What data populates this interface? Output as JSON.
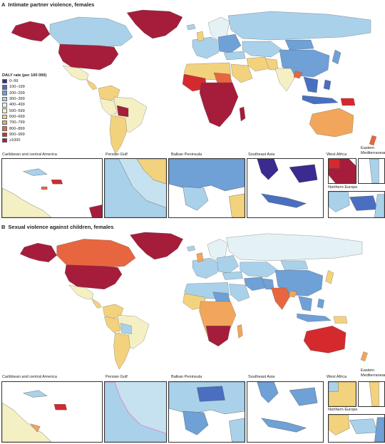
{
  "panel_a": {
    "letter": "A",
    "title": "Intimate partner violence, females",
    "insets": [
      "Caribbean and central America",
      "Persian Gulf",
      "Balkan Peninsula",
      "Southeast Asia",
      "West Africa",
      "Eastern Mediterranean",
      "Northern Europe"
    ]
  },
  "panel_b": {
    "letter": "B",
    "title": "Sexual violence against children, females",
    "insets": [
      "Caribbean and central America",
      "Persian Gulf",
      "Balkan Peninsula",
      "Southeast Asia",
      "West Africa",
      "Eastern Mediterranean",
      "Northern Europe"
    ]
  },
  "legend": {
    "title": "DALY rate (per 100 000)",
    "items": [
      {
        "label": "0–99",
        "color": "#3b2a8f"
      },
      {
        "label": "100–199",
        "color": "#4a6fc0"
      },
      {
        "label": "200–299",
        "color": "#6fa0d6"
      },
      {
        "label": "300–399",
        "color": "#a9d1ea"
      },
      {
        "label": "400–499",
        "color": "#e4f2f6"
      },
      {
        "label": "500–599",
        "color": "#f4f0c4"
      },
      {
        "label": "600–699",
        "color": "#f3d27e"
      },
      {
        "label": "700–799",
        "color": "#f1a65b"
      },
      {
        "label": "800–899",
        "color": "#e8663f"
      },
      {
        "label": "900–999",
        "color": "#d42a2e"
      },
      {
        "label": "≥1000",
        "color": "#a51d3a"
      }
    ]
  }
}
